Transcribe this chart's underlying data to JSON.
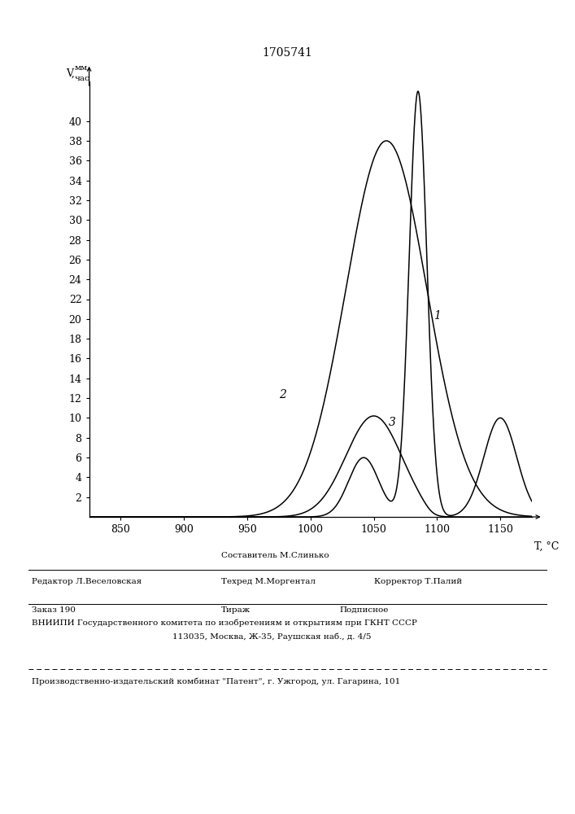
{
  "title": "1705741",
  "x_ticks": [
    850,
    900,
    950,
    1000,
    1050,
    1100,
    1150
  ],
  "y_ticks": [
    2,
    4,
    6,
    8,
    10,
    12,
    14,
    16,
    18,
    20,
    22,
    24,
    26,
    28,
    30,
    32,
    34,
    36,
    38,
    40
  ],
  "xlim": [
    825,
    1175
  ],
  "ylim": [
    0,
    44
  ],
  "background_color": "#ffffff",
  "line_color": "#000000"
}
